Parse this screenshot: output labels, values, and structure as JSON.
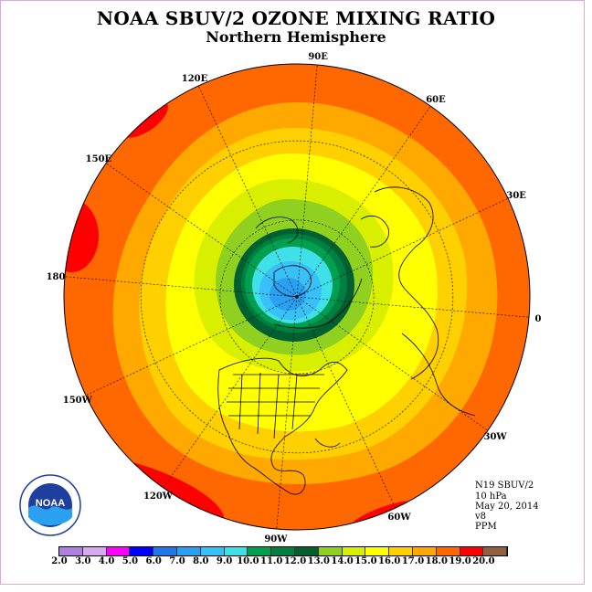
{
  "title": "NOAA SBUV/2 OZONE MIXING RATIO",
  "subtitle": "Northern Hemisphere",
  "longitude_labels": [
    "90E",
    "60E",
    "30E",
    "0",
    "30W",
    "60W",
    "90W",
    "120W",
    "150W",
    "180",
    "150E",
    "120E"
  ],
  "info": {
    "satellite": "N19 SBUV/2",
    "level": "10 hPa",
    "date": "May 20, 2014",
    "version": "v8",
    "units": "PPM"
  },
  "logo_text": "NOAA",
  "colorbar": {
    "labels": [
      "2.0",
      "3.0",
      "4.0",
      "5.0",
      "6.0",
      "7.0",
      "8.0",
      "9.0",
      "10.0",
      "11.0",
      "12.0",
      "13.0",
      "14.0",
      "15.0",
      "16.0",
      "17.0",
      "18.0",
      "19.0",
      "20.0"
    ],
    "colors": [
      "#b080e0",
      "#d8a8f0",
      "#ff00ff",
      "#0000ff",
      "#1e78e6",
      "#2aa0f0",
      "#38c0f8",
      "#40e0e8",
      "#00a050",
      "#008040",
      "#006030",
      "#90d020",
      "#d8f000",
      "#ffff00",
      "#ffd000",
      "#ffa800",
      "#ff6800",
      "#ff0000",
      "#906040"
    ]
  },
  "map_colors": {
    "outer": "#ff6800",
    "ring17": "#ffa800",
    "ring16": "#ffd000",
    "ring15": "#ffff00",
    "ring14": "#d8f000",
    "ring13": "#90d020",
    "ring12": "#006030",
    "ring11": "#008040",
    "ring10": "#00a050",
    "ring9": "#40e0e8",
    "ring8": "#38c0f8",
    "ring7": "#2aa0f0",
    "hot": "#ff0000"
  }
}
